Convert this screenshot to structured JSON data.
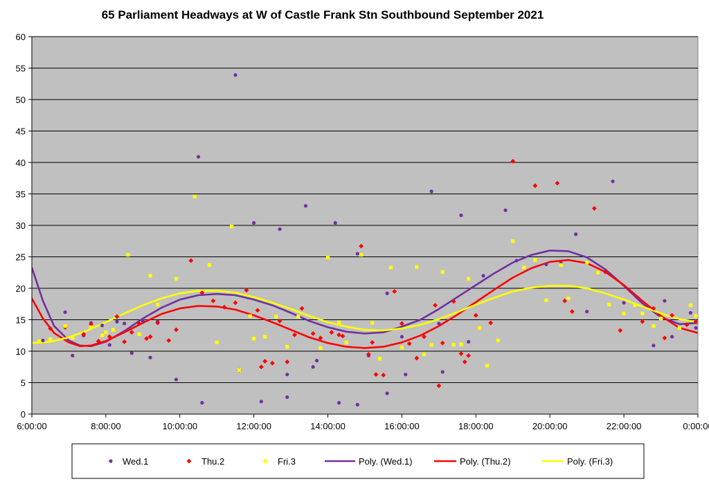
{
  "chart_data": {
    "type": "scatter",
    "title": "65 Parliament Headways at W of Castle Frank Stn Southbound September 2021",
    "xlabel": "",
    "ylabel": "",
    "x_range_hours": [
      6,
      24
    ],
    "ylim": [
      0,
      60
    ],
    "y_ticks": [
      "0",
      "5",
      "10",
      "15",
      "20",
      "25",
      "30",
      "35",
      "40",
      "45",
      "50",
      "55",
      "60"
    ],
    "x_ticks": [
      "6:00:00",
      "8:00:00",
      "10:00:00",
      "12:00:00",
      "14:00:00",
      "16:00:00",
      "18:00:00",
      "20:00:00",
      "22:00:00",
      "0:00:00"
    ],
    "grid": "horizontal",
    "legend_position": "bottom",
    "series": [
      {
        "name": "Wed.1",
        "kind": "points",
        "marker": "circle",
        "color": "#7030a0",
        "points": [
          [
            6.3,
            11.7
          ],
          [
            6.9,
            16.2
          ],
          [
            7.1,
            9.3
          ],
          [
            7.4,
            12.5
          ],
          [
            7.6,
            14.5
          ],
          [
            7.9,
            14.1
          ],
          [
            8.1,
            11.0
          ],
          [
            8.3,
            14.7
          ],
          [
            8.5,
            14.4
          ],
          [
            8.7,
            9.7
          ],
          [
            9.0,
            14.8
          ],
          [
            9.2,
            9.0
          ],
          [
            9.4,
            14.7
          ],
          [
            9.9,
            5.5
          ],
          [
            10.5,
            40.9
          ],
          [
            10.6,
            1.8
          ],
          [
            11.5,
            53.9
          ],
          [
            12.0,
            30.4
          ],
          [
            12.2,
            2.0
          ],
          [
            12.7,
            29.4
          ],
          [
            12.9,
            2.7
          ],
          [
            12.9,
            6.3
          ],
          [
            13.4,
            33.1
          ],
          [
            13.6,
            7.5
          ],
          [
            13.7,
            8.5
          ],
          [
            14.2,
            30.4
          ],
          [
            14.3,
            1.8
          ],
          [
            14.8,
            25.5
          ],
          [
            14.8,
            1.5
          ],
          [
            15.1,
            9.3
          ],
          [
            15.6,
            19.2
          ],
          [
            15.6,
            3.3
          ],
          [
            16.0,
            12.3
          ],
          [
            16.1,
            6.3
          ],
          [
            16.8,
            35.4
          ],
          [
            17.0,
            14.4
          ],
          [
            17.1,
            6.7
          ],
          [
            17.6,
            31.6
          ],
          [
            17.8,
            11.5
          ],
          [
            18.2,
            22.0
          ],
          [
            18.8,
            32.4
          ],
          [
            19.1,
            24.4
          ],
          [
            19.9,
            23.8
          ],
          [
            20.3,
            24.0
          ],
          [
            20.7,
            28.6
          ],
          [
            21.0,
            16.3
          ],
          [
            21.7,
            37.0
          ],
          [
            22.0,
            17.7
          ],
          [
            22.8,
            10.9
          ],
          [
            23.1,
            18.0
          ],
          [
            23.3,
            12.3
          ],
          [
            23.8,
            16.1
          ],
          [
            24.0,
            13.7
          ]
        ]
      },
      {
        "name": "Thu.2",
        "kind": "points",
        "marker": "diamond",
        "color": "#ff0000",
        "points": [
          [
            6.5,
            13.6
          ],
          [
            6.9,
            13.8
          ],
          [
            7.4,
            12.7
          ],
          [
            7.6,
            14.3
          ],
          [
            7.8,
            11.6
          ],
          [
            8.1,
            12.3
          ],
          [
            8.3,
            15.5
          ],
          [
            8.5,
            11.5
          ],
          [
            8.7,
            13.0
          ],
          [
            8.9,
            14.4
          ],
          [
            9.1,
            12.0
          ],
          [
            9.2,
            12.3
          ],
          [
            9.4,
            14.5
          ],
          [
            9.7,
            11.7
          ],
          [
            9.9,
            13.4
          ],
          [
            10.3,
            24.4
          ],
          [
            10.6,
            19.3
          ],
          [
            10.9,
            18.0
          ],
          [
            11.2,
            17.0
          ],
          [
            11.5,
            17.7
          ],
          [
            11.6,
            7.0
          ],
          [
            11.8,
            19.7
          ],
          [
            12.1,
            16.5
          ],
          [
            12.2,
            7.5
          ],
          [
            12.3,
            8.4
          ],
          [
            12.5,
            8.1
          ],
          [
            12.7,
            14.8
          ],
          [
            12.9,
            8.3
          ],
          [
            13.1,
            12.6
          ],
          [
            13.3,
            16.8
          ],
          [
            13.6,
            12.8
          ],
          [
            13.8,
            12.1
          ],
          [
            14.1,
            13.0
          ],
          [
            14.3,
            12.6
          ],
          [
            14.4,
            12.4
          ],
          [
            14.9,
            26.7
          ],
          [
            15.1,
            9.5
          ],
          [
            15.2,
            11.4
          ],
          [
            15.3,
            6.3
          ],
          [
            15.5,
            6.2
          ],
          [
            15.8,
            19.5
          ],
          [
            16.0,
            14.4
          ],
          [
            16.2,
            11.2
          ],
          [
            16.4,
            8.9
          ],
          [
            16.6,
            12.3
          ],
          [
            16.9,
            17.3
          ],
          [
            17.0,
            4.5
          ],
          [
            17.1,
            11.3
          ],
          [
            17.4,
            17.9
          ],
          [
            17.6,
            9.6
          ],
          [
            17.7,
            8.3
          ],
          [
            17.8,
            9.3
          ],
          [
            18.0,
            15.7
          ],
          [
            18.4,
            14.5
          ],
          [
            19.0,
            40.2
          ],
          [
            19.6,
            36.3
          ],
          [
            20.2,
            36.7
          ],
          [
            20.4,
            18.0
          ],
          [
            20.6,
            16.3
          ],
          [
            21.2,
            32.7
          ],
          [
            21.5,
            22.6
          ],
          [
            21.9,
            13.3
          ],
          [
            22.5,
            14.7
          ],
          [
            22.8,
            16.8
          ],
          [
            23.1,
            12.1
          ],
          [
            23.3,
            15.7
          ],
          [
            23.7,
            14.2
          ],
          [
            24.0,
            14.7
          ]
        ]
      },
      {
        "name": "Fri.3",
        "kind": "points",
        "marker": "square",
        "color": "#ffff00",
        "points": [
          [
            6.2,
            11.6
          ],
          [
            6.5,
            11.9
          ],
          [
            6.9,
            14.0
          ],
          [
            7.1,
            12.1
          ],
          [
            7.6,
            13.8
          ],
          [
            7.9,
            12.5
          ],
          [
            8.0,
            13.0
          ],
          [
            8.2,
            13.4
          ],
          [
            8.6,
            25.3
          ],
          [
            8.9,
            12.7
          ],
          [
            9.2,
            22.0
          ],
          [
            9.4,
            17.4
          ],
          [
            9.9,
            21.5
          ],
          [
            10.4,
            34.6
          ],
          [
            10.8,
            23.7
          ],
          [
            11.0,
            11.4
          ],
          [
            11.4,
            29.8
          ],
          [
            11.6,
            7.0
          ],
          [
            11.9,
            15.6
          ],
          [
            12.0,
            12.0
          ],
          [
            12.3,
            12.3
          ],
          [
            12.6,
            15.5
          ],
          [
            12.9,
            10.7
          ],
          [
            13.2,
            15.5
          ],
          [
            13.8,
            10.5
          ],
          [
            14.0,
            24.9
          ],
          [
            14.3,
            14.6
          ],
          [
            14.5,
            11.4
          ],
          [
            14.9,
            25.3
          ],
          [
            15.2,
            14.5
          ],
          [
            15.4,
            8.8
          ],
          [
            15.7,
            23.3
          ],
          [
            16.0,
            10.6
          ],
          [
            16.4,
            23.4
          ],
          [
            16.6,
            9.5
          ],
          [
            16.8,
            11.0
          ],
          [
            17.1,
            22.6
          ],
          [
            17.4,
            11.0
          ],
          [
            17.6,
            11.1
          ],
          [
            17.8,
            21.5
          ],
          [
            18.1,
            13.7
          ],
          [
            18.3,
            7.7
          ],
          [
            18.6,
            11.7
          ],
          [
            19.0,
            27.5
          ],
          [
            19.3,
            23.3
          ],
          [
            19.6,
            24.5
          ],
          [
            19.9,
            18.1
          ],
          [
            20.3,
            23.7
          ],
          [
            20.5,
            18.4
          ],
          [
            21.0,
            24.1
          ],
          [
            21.3,
            22.5
          ],
          [
            21.6,
            17.4
          ],
          [
            22.0,
            16.0
          ],
          [
            22.3,
            17.3
          ],
          [
            22.5,
            16.0
          ],
          [
            22.8,
            14.0
          ],
          [
            23.0,
            15.2
          ],
          [
            23.5,
            13.7
          ],
          [
            23.8,
            17.3
          ],
          [
            24.2,
            15.6
          ]
        ]
      },
      {
        "name": "Poly. (Wed.1)",
        "kind": "curve",
        "color": "#7030a0",
        "points": [
          [
            6.0,
            23.3
          ],
          [
            6.3,
            18.0
          ],
          [
            6.6,
            14.0
          ],
          [
            7.0,
            11.7
          ],
          [
            7.3,
            10.9
          ],
          [
            7.6,
            10.8
          ],
          [
            8.0,
            11.5
          ],
          [
            8.5,
            13.2
          ],
          [
            9.0,
            15.2
          ],
          [
            9.5,
            16.9
          ],
          [
            10.0,
            18.2
          ],
          [
            10.5,
            18.9
          ],
          [
            11.0,
            19.1
          ],
          [
            11.5,
            18.9
          ],
          [
            12.0,
            18.2
          ],
          [
            12.5,
            17.3
          ],
          [
            13.0,
            16.1
          ],
          [
            13.5,
            14.8
          ],
          [
            14.0,
            13.8
          ],
          [
            14.5,
            13.1
          ],
          [
            15.0,
            12.8
          ],
          [
            15.5,
            13.0
          ],
          [
            16.0,
            13.9
          ],
          [
            16.5,
            15.0
          ],
          [
            17.0,
            16.7
          ],
          [
            17.5,
            18.6
          ],
          [
            18.0,
            20.5
          ],
          [
            18.5,
            22.4
          ],
          [
            19.0,
            24.1
          ],
          [
            19.5,
            25.3
          ],
          [
            20.0,
            26.0
          ],
          [
            20.5,
            25.9
          ],
          [
            21.0,
            24.9
          ],
          [
            21.5,
            23.0
          ],
          [
            22.0,
            20.4
          ],
          [
            22.5,
            17.6
          ],
          [
            23.0,
            15.4
          ],
          [
            23.5,
            14.3
          ],
          [
            24.0,
            14.5
          ]
        ]
      },
      {
        "name": "Poly. (Thu.2)",
        "kind": "curve",
        "color": "#ff0000",
        "points": [
          [
            6.0,
            18.4
          ],
          [
            6.3,
            15.2
          ],
          [
            6.6,
            12.9
          ],
          [
            7.0,
            11.4
          ],
          [
            7.3,
            10.8
          ],
          [
            7.6,
            10.9
          ],
          [
            8.0,
            11.6
          ],
          [
            8.5,
            13.0
          ],
          [
            9.0,
            14.5
          ],
          [
            9.5,
            15.9
          ],
          [
            10.0,
            16.8
          ],
          [
            10.5,
            17.2
          ],
          [
            11.0,
            17.1
          ],
          [
            11.5,
            16.6
          ],
          [
            12.0,
            15.7
          ],
          [
            12.5,
            14.6
          ],
          [
            13.0,
            13.4
          ],
          [
            13.5,
            12.2
          ],
          [
            14.0,
            11.3
          ],
          [
            14.5,
            10.7
          ],
          [
            15.0,
            10.5
          ],
          [
            15.5,
            10.7
          ],
          [
            16.0,
            11.4
          ],
          [
            16.5,
            12.5
          ],
          [
            17.0,
            14.0
          ],
          [
            17.5,
            15.8
          ],
          [
            18.0,
            17.8
          ],
          [
            18.5,
            19.8
          ],
          [
            19.0,
            21.7
          ],
          [
            19.5,
            23.2
          ],
          [
            20.0,
            24.2
          ],
          [
            20.5,
            24.5
          ],
          [
            21.0,
            24.0
          ],
          [
            21.5,
            22.6
          ],
          [
            22.0,
            20.5
          ],
          [
            22.5,
            18.0
          ],
          [
            23.0,
            15.6
          ],
          [
            23.5,
            13.7
          ],
          [
            24.0,
            12.9
          ]
        ]
      },
      {
        "name": "Poly. (Fri.3)",
        "kind": "curve",
        "color": "#ffff00",
        "points": [
          [
            6.0,
            11.3
          ],
          [
            6.5,
            11.5
          ],
          [
            7.0,
            12.2
          ],
          [
            7.5,
            13.3
          ],
          [
            8.0,
            14.6
          ],
          [
            8.5,
            16.0
          ],
          [
            9.0,
            17.3
          ],
          [
            9.5,
            18.4
          ],
          [
            10.0,
            19.2
          ],
          [
            10.5,
            19.6
          ],
          [
            11.0,
            19.6
          ],
          [
            11.5,
            19.3
          ],
          [
            12.0,
            18.6
          ],
          [
            12.5,
            17.7
          ],
          [
            13.0,
            16.7
          ],
          [
            13.5,
            15.6
          ],
          [
            14.0,
            14.6
          ],
          [
            14.5,
            13.9
          ],
          [
            15.0,
            13.4
          ],
          [
            15.5,
            13.3
          ],
          [
            16.0,
            13.6
          ],
          [
            16.5,
            14.2
          ],
          [
            17.0,
            15.1
          ],
          [
            17.5,
            16.2
          ],
          [
            18.0,
            17.4
          ],
          [
            18.5,
            18.5
          ],
          [
            19.0,
            19.5
          ],
          [
            19.5,
            20.1
          ],
          [
            20.0,
            20.4
          ],
          [
            20.5,
            20.4
          ],
          [
            21.0,
            20.0
          ],
          [
            21.5,
            19.2
          ],
          [
            22.0,
            18.2
          ],
          [
            22.5,
            17.1
          ],
          [
            23.0,
            16.0
          ],
          [
            23.5,
            15.1
          ],
          [
            24.0,
            14.6
          ]
        ]
      }
    ]
  }
}
